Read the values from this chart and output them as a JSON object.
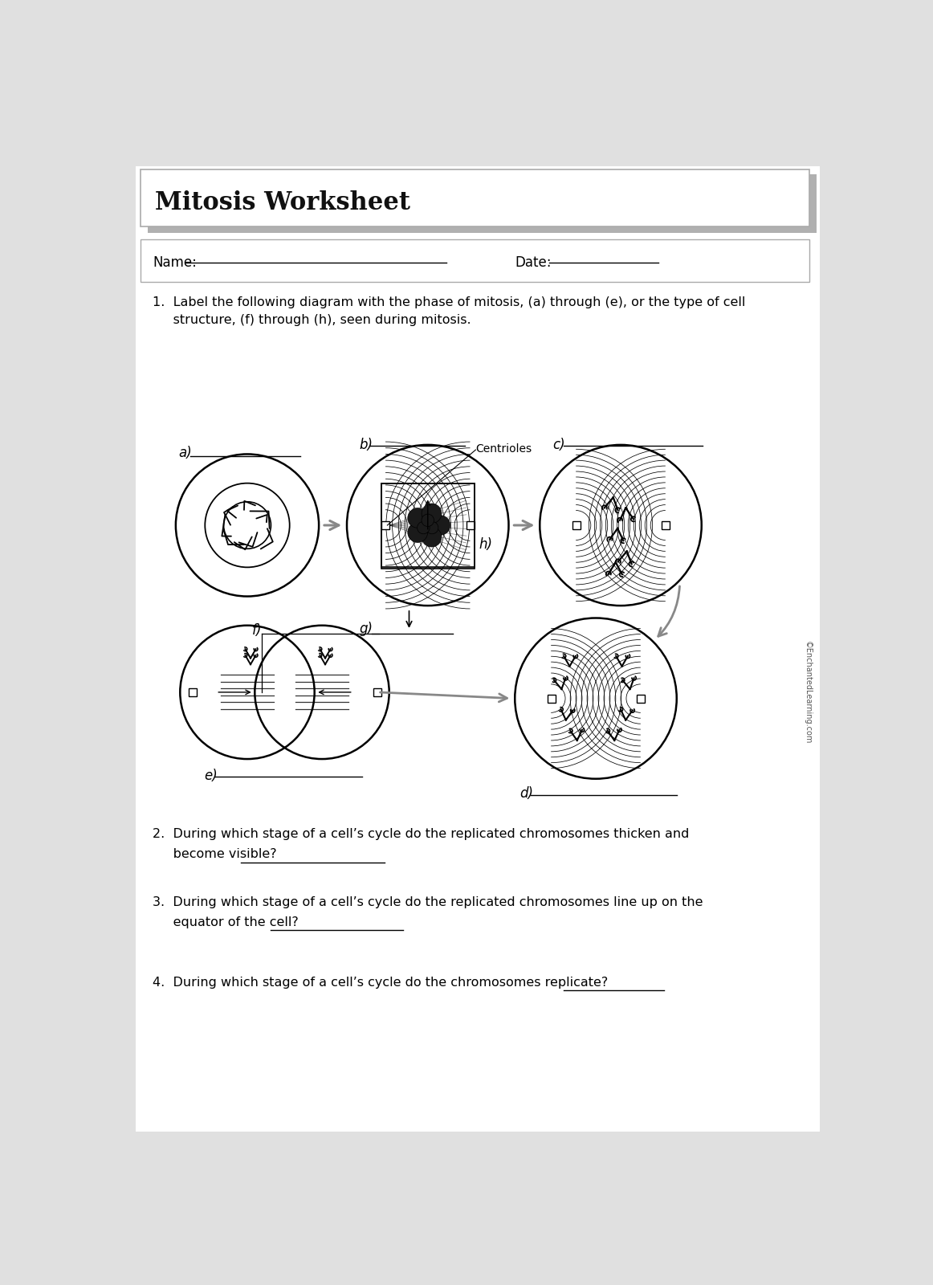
{
  "title": "Mitosis Worksheet",
  "name_label": "Name:",
  "date_label": "Date:",
  "q1_text_line1": "1.  Label the following diagram with the phase of mitosis, (a) through (e), or the type of cell",
  "q1_text_line2": "     structure, (f) through (h), seen during mitosis.",
  "q2_line1": "2.  During which stage of a cell’s cycle do the replicated chromosomes thicken and",
  "q2_line2": "     become visible?",
  "q3_line1": "3.  During which stage of a cell’s cycle do the replicated chromosomes line up on the",
  "q3_line2": "     equator of the cell?",
  "q4_text": "4.  During which stage of a cell’s cycle do the chromosomes replicate?",
  "copyright": "©EnchantedLearning.com",
  "label_a": "a)",
  "label_b": "b)",
  "label_c": "c)",
  "label_d": "d)",
  "label_e": "e)",
  "label_f": "f)",
  "label_g": "g)",
  "label_h": "h)",
  "label_centrioles": "Centrioles",
  "page_bg": "#e0e0e0",
  "paper_bg": "#ffffff",
  "text_color": "#111111",
  "line_color": "#000000",
  "arrow_color": "#888888"
}
